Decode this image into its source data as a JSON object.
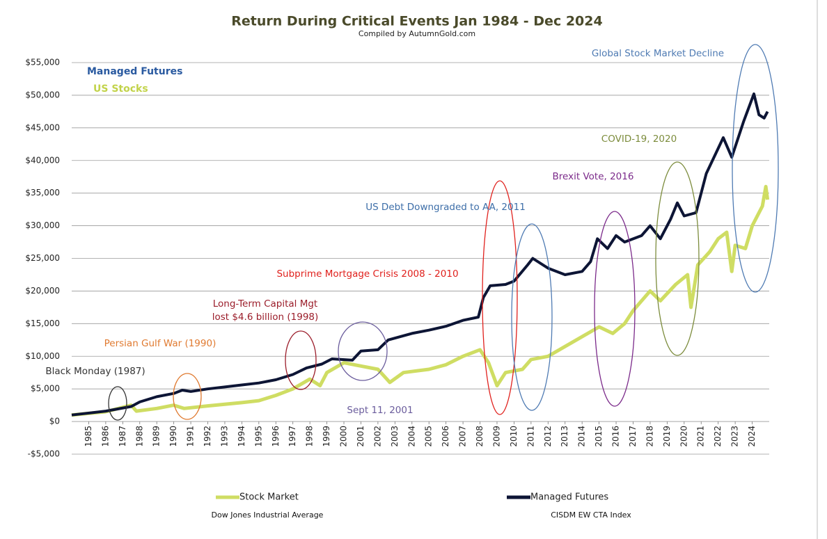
{
  "chart_data": {
    "type": "line",
    "title": "Return During Critical Events Jan 1984 - Dec 2024",
    "subtitle": "Compiled by AutumnGold.com",
    "xlim": [
      1984,
      2025
    ],
    "xticks": [
      1985,
      1986,
      1987,
      1988,
      1989,
      1990,
      1991,
      1992,
      1993,
      1994,
      1995,
      1996,
      1997,
      1998,
      1999,
      2000,
      2001,
      2002,
      2003,
      2004,
      2005,
      2006,
      2007,
      2008,
      2009,
      2010,
      2011,
      2012,
      2013,
      2014,
      2015,
      2016,
      2017,
      2018,
      2019,
      2020,
      2021,
      2022,
      2023,
      2024
    ],
    "ylim": [
      -5000,
      55000
    ],
    "yticks": [
      {
        "value": -5000,
        "label": "-$5,000"
      },
      {
        "value": 0,
        "label": "$0"
      },
      {
        "value": 5000,
        "label": "$5,000"
      },
      {
        "value": 10000,
        "label": "$10,000"
      },
      {
        "value": 15000,
        "label": "$15,000"
      },
      {
        "value": 20000,
        "label": "$20,000"
      },
      {
        "value": 25000,
        "label": "$25,000"
      },
      {
        "value": 30000,
        "label": "$30,000"
      },
      {
        "value": 35000,
        "label": "$35,000"
      },
      {
        "value": 40000,
        "label": "$40,000"
      },
      {
        "value": 45000,
        "label": "$45,000"
      },
      {
        "value": 50000,
        "label": "$50,000"
      },
      {
        "value": 55000,
        "label": "$55,000"
      }
    ],
    "grid": true,
    "series": [
      {
        "name": "Stock Market",
        "source": "Dow Jones Industrial Average",
        "color": "#cfdd63",
        "x": [
          1984,
          1986,
          1987.5,
          1987.8,
          1989,
          1990,
          1990.6,
          1992,
          1994,
          1995,
          1996,
          1997,
          1998,
          1998.6,
          1999,
          2000,
          2001,
          2002,
          2002.7,
          2003.5,
          2005,
          2006,
          2007,
          2008,
          2008.5,
          2009,
          2009.5,
          2010.5,
          2011,
          2012,
          2013,
          2014,
          2015,
          2015.8,
          2016.5,
          2017,
          2018,
          2018.6,
          2019.5,
          2020.2,
          2020.4,
          2020.8,
          2021.5,
          2022,
          2022.5,
          2022.8,
          2023,
          2023.6,
          2024,
          2024.6,
          2024.8,
          2024.9
        ],
        "values": [
          1000,
          1500,
          2500,
          1600,
          2000,
          2500,
          2000,
          2400,
          2900,
          3200,
          4000,
          5000,
          6500,
          5500,
          7500,
          9000,
          8500,
          8000,
          6000,
          7500,
          8000,
          8700,
          10000,
          11000,
          9000,
          5500,
          7500,
          8000,
          9500,
          10000,
          11500,
          13000,
          14500,
          13500,
          15000,
          17000,
          20000,
          18500,
          21000,
          22500,
          17500,
          24000,
          26000,
          28000,
          29000,
          23000,
          27000,
          26500,
          30000,
          33000,
          36000,
          34000
        ]
      },
      {
        "name": "Managed Futures",
        "source": "CISDM EW CTA Index",
        "color": "#0d1535",
        "x": [
          1984,
          1986,
          1987.5,
          1988,
          1989,
          1990,
          1990.5,
          1991,
          1992,
          1993,
          1994,
          1995,
          1996,
          1997,
          1997.8,
          1998.7,
          1999.3,
          2000.5,
          2001,
          2002,
          2002.6,
          2004,
          2005,
          2006,
          2007,
          2007.9,
          2008.2,
          2008.6,
          2009.5,
          2010,
          2010.8,
          2011.1,
          2012,
          2013,
          2014,
          2014.5,
          2014.9,
          2015.5,
          2016,
          2016.5,
          2017.5,
          2018,
          2018.6,
          2019.2,
          2019.6,
          2020,
          2020.7,
          2021.3,
          2022.3,
          2022.8,
          2023.5,
          2024.1,
          2024.4,
          2024.7,
          2024.9
        ],
        "values": [
          1000,
          1600,
          2300,
          3000,
          3800,
          4300,
          4800,
          4600,
          5000,
          5300,
          5600,
          5900,
          6400,
          7200,
          8200,
          8800,
          9600,
          9400,
          10800,
          11000,
          12500,
          13500,
          14000,
          14600,
          15500,
          16000,
          19000,
          20800,
          21000,
          21500,
          24000,
          25000,
          23500,
          22500,
          23000,
          24500,
          28000,
          26500,
          28500,
          27500,
          28500,
          30000,
          28000,
          31000,
          33500,
          31500,
          32000,
          38000,
          43500,
          40500,
          46000,
          50200,
          47000,
          46500,
          47500
        ]
      }
    ],
    "inline_labels": [
      {
        "text": "Managed Futures",
        "color": "#2a5aa0"
      },
      {
        "text": "US Stocks",
        "color": "#c2d34a"
      }
    ],
    "annotations": [
      {
        "text": "Global Stock Market Decline",
        "color": "#4f7bb3"
      },
      {
        "text": "COVID-19, 2020",
        "color": "#7c8c3c"
      },
      {
        "text": "Brexit Vote, 2016",
        "color": "#7b2a8a"
      },
      {
        "text": "US Debt Downgraded to AA, 2011",
        "color": "#3d6ea8"
      },
      {
        "text": "Subprime Mortgage Crisis 2008 - 2010",
        "color": "#e0201c"
      },
      {
        "text": "Long-Term Capital Mgt",
        "color": "#9b1d2a"
      },
      {
        "text": "lost $4.6 billion (1998)",
        "color": "#9b1d2a"
      },
      {
        "text": "Persian Gulf War (1990)",
        "color": "#e07a30"
      },
      {
        "text": "Black Monday (1987)",
        "color": "#333333"
      },
      {
        "text": "Sept 11, 2001",
        "color": "#6a5c9c"
      }
    ]
  }
}
